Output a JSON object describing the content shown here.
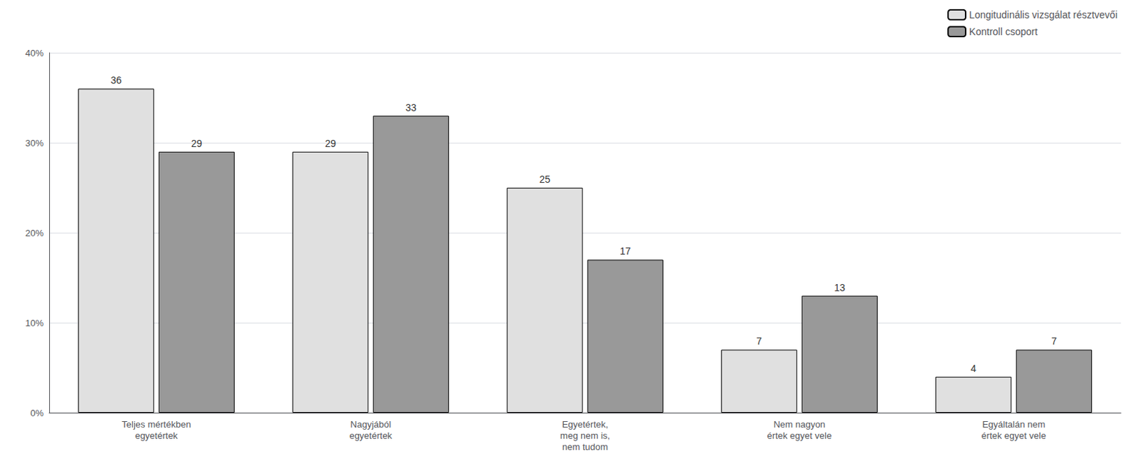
{
  "chart_data": {
    "type": "bar",
    "categories": [
      "Teljes mértékben\negyetértek",
      "Nagyjából\negyetértek",
      "Egyetértek,\nmeg nem is,\nnem tudom",
      "Nem nagyon\nértek egyet vele",
      "Egyáltalán nem\nértek egyet vele"
    ],
    "series": [
      {
        "name": "Longitudinális vizsgálat résztvevői",
        "color": "#e0e0e0",
        "values": [
          36,
          29,
          25,
          7,
          4
        ]
      },
      {
        "name": "Kontroll csoport",
        "color": "#999999",
        "values": [
          29,
          33,
          17,
          13,
          7
        ]
      }
    ],
    "ylim": [
      0,
      40
    ],
    "yticks": [
      {
        "value": 0,
        "label": "0%"
      },
      {
        "value": 10,
        "label": "10%"
      },
      {
        "value": 20,
        "label": "20%"
      },
      {
        "value": 30,
        "label": "30%"
      },
      {
        "value": 40,
        "label": "40%"
      }
    ],
    "grid": true,
    "legend": "upper right",
    "data_labels": true
  }
}
